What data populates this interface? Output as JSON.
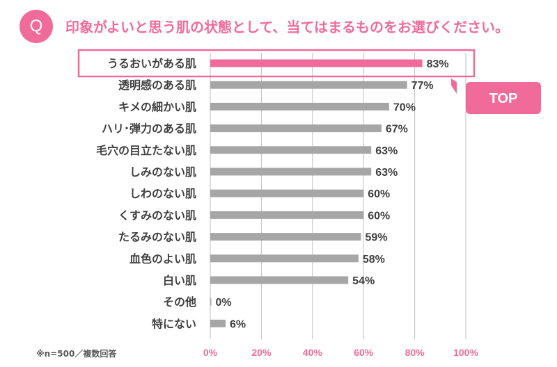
{
  "question": {
    "badge": "Q",
    "text": "印象がよいと思う肌の状態として、当てはまるものをお選びください。"
  },
  "note": "※n=500／複数回答",
  "top_badge": "TOP",
  "colors": {
    "accent": "#f06b9a",
    "bar": "#a6a6a6",
    "grid": "#bfbfbf",
    "text": "#404040"
  },
  "chart_data": {
    "type": "bar",
    "orientation": "horizontal",
    "categories": [
      "うるおいがある肌",
      "透明感のある肌",
      "キメの細かい肌",
      "ハリ･弾力のある肌",
      "毛穴の目立たない肌",
      "しみのない肌",
      "しわのない肌",
      "くすみのない肌",
      "たるみのない肌",
      "血色のよい肌",
      "白い肌",
      "その他",
      "特にない"
    ],
    "values": [
      83,
      77,
      70,
      67,
      63,
      63,
      60,
      60,
      59,
      58,
      54,
      0,
      6
    ],
    "value_suffix": "%",
    "xlim": [
      0,
      100
    ],
    "xticks": [
      "0%",
      "20%",
      "40%",
      "60%",
      "80%",
      "100%"
    ],
    "highlight_index": 0,
    "grid": true
  }
}
